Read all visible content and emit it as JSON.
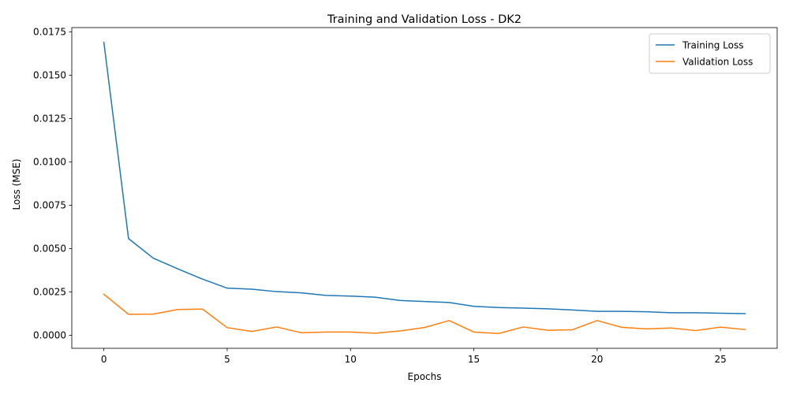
{
  "chart_data": {
    "type": "line",
    "title": "Training and Validation Loss - DK2",
    "xlabel": "Epochs",
    "ylabel": "Loss (MSE)",
    "xlim": [
      -1.3,
      27.3
    ],
    "ylim": [
      -0.00075,
      0.01775
    ],
    "xticks": [
      0,
      5,
      10,
      15,
      20,
      25
    ],
    "yticks": [
      0.0,
      0.0025,
      0.005,
      0.0075,
      0.01,
      0.0125,
      0.015,
      0.0175
    ],
    "ytick_labels": [
      "0.0000",
      "0.0025",
      "0.0050",
      "0.0075",
      "0.0100",
      "0.0125",
      "0.0150",
      "0.0175"
    ],
    "grid": false,
    "legend_position": "top-right",
    "x": [
      0,
      1,
      2,
      3,
      4,
      5,
      6,
      7,
      8,
      9,
      10,
      11,
      12,
      13,
      14,
      15,
      16,
      17,
      18,
      19,
      20,
      21,
      22,
      23,
      24,
      25,
      26
    ],
    "series": [
      {
        "name": "Training Loss",
        "color": "#1f77b4",
        "values": [
          0.0169,
          0.00558,
          0.00445,
          0.00383,
          0.00324,
          0.00272,
          0.00266,
          0.00252,
          0.00245,
          0.0023,
          0.00226,
          0.0022,
          0.00201,
          0.00195,
          0.00189,
          0.00167,
          0.0016,
          0.00157,
          0.00153,
          0.00146,
          0.00138,
          0.00138,
          0.00136,
          0.0013,
          0.0013,
          0.00127,
          0.00125
        ]
      },
      {
        "name": "Validation Loss",
        "color": "#ff7f0e",
        "values": [
          0.00237,
          0.00121,
          0.00122,
          0.00149,
          0.00151,
          0.00044,
          0.00022,
          0.00048,
          0.00015,
          0.00019,
          0.00019,
          0.00012,
          0.00025,
          0.00045,
          0.00085,
          0.00019,
          0.0001,
          0.00048,
          0.00029,
          0.00032,
          0.00085,
          0.00046,
          0.00037,
          0.00042,
          0.00027,
          0.00047,
          0.00033
        ]
      }
    ]
  }
}
